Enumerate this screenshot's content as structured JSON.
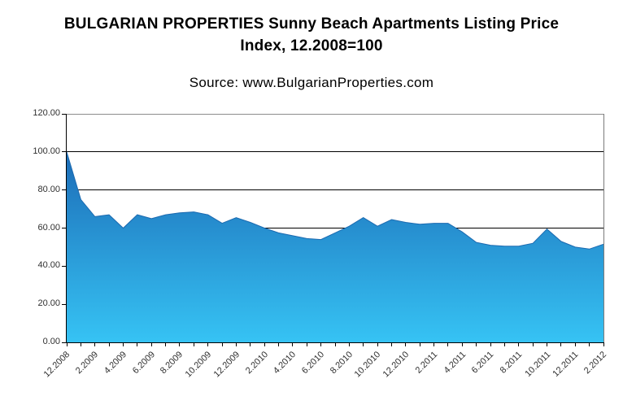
{
  "header": {
    "title_line1": "BULGARIAN PROPERTIES Sunny Beach Apartments Listing Price",
    "title_line2": "Index, 12.2008=100",
    "source": "Source: www.BulgarianProperties.com"
  },
  "chart_data": {
    "type": "area",
    "title": "BULGARIAN PROPERTIES Sunny Beach Apartments Listing Price Index, 12.2008=100",
    "subtitle": "Source: www.BulgarianProperties.com",
    "xlabel": "",
    "ylabel": "",
    "ylim": [
      0,
      120
    ],
    "y_tick_labels": [
      "0.00",
      "20.00",
      "40.00",
      "60.00",
      "80.00",
      "100.00",
      "120.00"
    ],
    "y_tick_step": 20,
    "y_grid_values": [
      20,
      40,
      60,
      80,
      100
    ],
    "grid": "horizontal",
    "legend": "none",
    "x_label_interval": 2,
    "x": [
      "12.2008",
      "1.2009",
      "2.2009",
      "3.2009",
      "4.2009",
      "5.2009",
      "6.2009",
      "7.2009",
      "8.2009",
      "9.2009",
      "10.2009",
      "11.2009",
      "12.2009",
      "1.2010",
      "2.2010",
      "3.2010",
      "4.2010",
      "5.2010",
      "6.2010",
      "7.2010",
      "8.2010",
      "9.2010",
      "10.2010",
      "11.2010",
      "12.2010",
      "1.2011",
      "2.2011",
      "3.2011",
      "4.2011",
      "5.2011",
      "6.2011",
      "7.2011",
      "8.2011",
      "9.2011",
      "10.2011",
      "11.2011",
      "12.2011",
      "1.2012",
      "2.2012"
    ],
    "values": [
      100,
      75,
      66,
      67,
      60,
      67,
      65,
      67,
      68,
      68.5,
      67,
      62.5,
      65.5,
      63,
      60,
      57.5,
      56,
      54.5,
      54,
      57.5,
      61,
      65.5,
      61,
      64.5,
      63,
      62,
      62.5,
      62.5,
      58,
      52.5,
      51,
      50.5,
      50.5,
      52,
      59.5,
      53,
      50,
      49,
      51.5
    ],
    "colors": {
      "area_gradient_top": "#175bab",
      "area_gradient_bottom": "#36c3f4",
      "area_edge": "#1c6ab0",
      "grid": "#000000",
      "axis": "#000000",
      "border_top": "#8c8c8c",
      "border_right": "#7a7a7a",
      "label": "#303030",
      "title": "#000000",
      "background": "#ffffff"
    }
  }
}
